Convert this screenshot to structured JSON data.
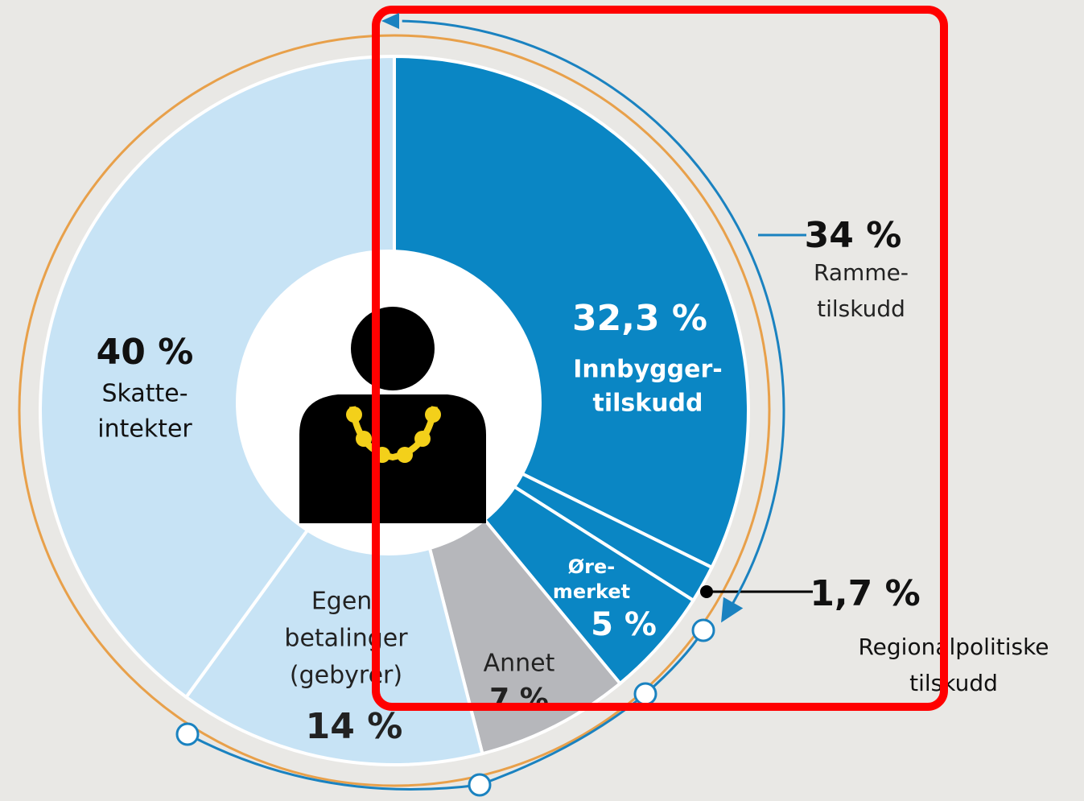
{
  "chart_data": {
    "type": "pie",
    "categories": [
      [
        "Innbygger-",
        "tilskudd"
      ],
      [
        "Regionalpolitiske",
        "tilskudd"
      ],
      [
        "Øre-",
        "merket"
      ],
      [
        "Annet"
      ],
      [
        "Egen-",
        "betalinger",
        "(gebyrer)"
      ],
      [
        "Skatte-",
        "intekter"
      ]
    ],
    "values": [
      32.3,
      1.7,
      5,
      7,
      14,
      40
    ],
    "value_labels": [
      "32,3 %",
      "1,7 %",
      "5 %",
      "7 %",
      "14 %",
      "40 %"
    ],
    "colors": [
      "#0a86c4",
      "#0a86c4",
      "#0a86c4",
      "#b6b7bb",
      "#c7e3f5",
      "#c7e3f5"
    ],
    "group": {
      "value": 34,
      "value_label": "34 %",
      "label": [
        "Ramme-",
        "tilskudd"
      ],
      "color": "#1a82c0"
    }
  }
}
